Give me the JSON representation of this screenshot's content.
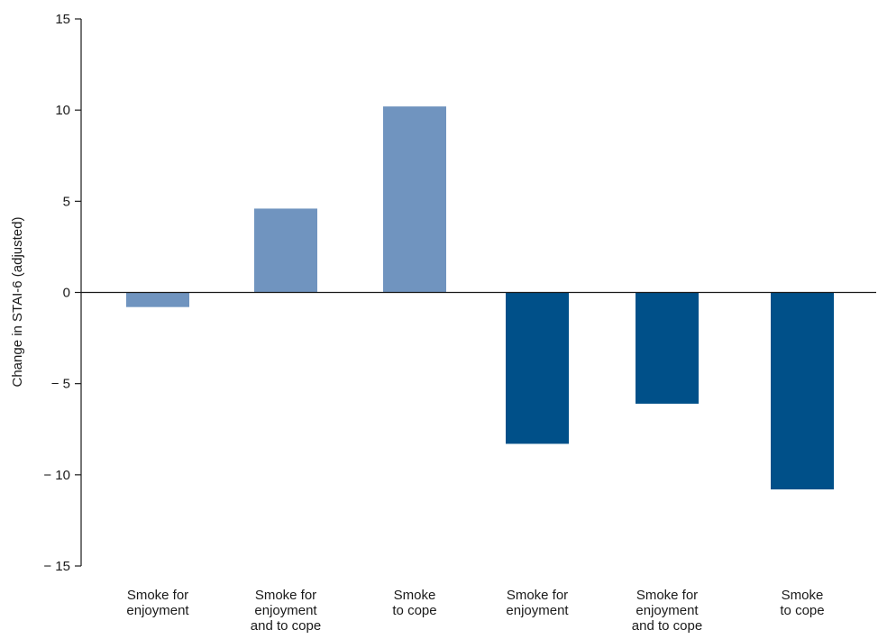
{
  "chart_data": {
    "type": "bar",
    "ylabel": "Change in STAI-6 (adjusted)",
    "ylim": [
      -15,
      15
    ],
    "yticks": [
      15,
      10,
      5,
      0,
      -5,
      -10,
      -15
    ],
    "ytick_labels": [
      "15",
      "10",
      "5",
      "0",
      "− 5",
      "− 10",
      "− 15"
    ],
    "categories": [
      [
        "Smoke for",
        "enjoyment"
      ],
      [
        "Smoke for",
        "enjoyment",
        "and to cope"
      ],
      [
        "Smoke",
        "to cope"
      ],
      [
        "Smoke for",
        "enjoyment"
      ],
      [
        "Smoke for",
        "enjoyment",
        "and to cope"
      ],
      [
        "Smoke",
        "to cope"
      ]
    ],
    "values": [
      -0.8,
      4.6,
      10.2,
      -8.3,
      -6.1,
      -10.8
    ],
    "colors": [
      "#7094bf",
      "#7094bf",
      "#7094bf",
      "#005089",
      "#005089",
      "#005089"
    ],
    "grid": false
  }
}
